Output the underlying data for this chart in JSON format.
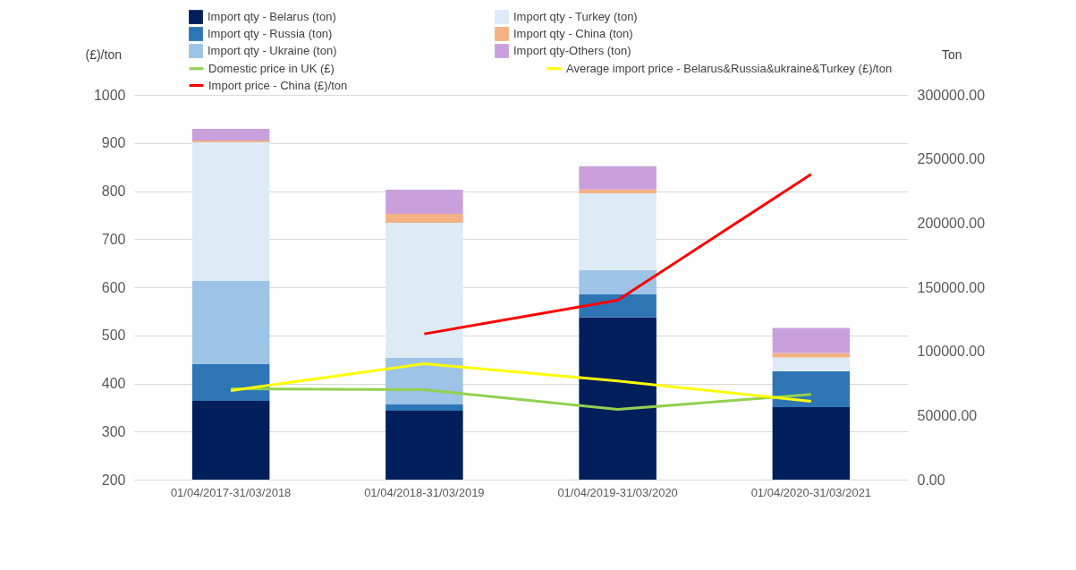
{
  "chart_data": {
    "type": "bar",
    "stacked": true,
    "ylabel": "(£)/ton",
    "y2label": "Ton",
    "grid": "y",
    "legend": "top",
    "categories": [
      "01/04/2017-31/03/2018",
      "01/04/2018-31/03/2019",
      "01/04/2019-31/03/2020",
      "01/04/2020-31/03/2021"
    ],
    "ylim": [
      200,
      1000
    ],
    "yticks": [
      200,
      300,
      400,
      500,
      600,
      700,
      800,
      900,
      1000
    ],
    "y2lim": [
      0,
      300000
    ],
    "y2ticks": [
      {
        "value": 0,
        "label": "0.00"
      },
      {
        "value": 50000,
        "label": "50000.00"
      },
      {
        "value": 100000,
        "label": "100000.00"
      },
      {
        "value": 150000,
        "label": "150000.00"
      },
      {
        "value": 200000,
        "label": "200000.00"
      },
      {
        "value": 250000,
        "label": "250000.00"
      },
      {
        "value": 300000,
        "label": "300000.00"
      }
    ],
    "series": [
      {
        "name": "Import qty - Belarus (ton)",
        "color": "#001f5b",
        "axis": "y2",
        "values": [
          61400,
          53700,
          126500,
          56500
        ]
      },
      {
        "name": "Import qty - Russia (ton)",
        "color": "#2e75b6",
        "axis": "y2",
        "values": [
          28600,
          4900,
          17900,
          28100
        ]
      },
      {
        "name": "Import qty - Ukraine (ton)",
        "color": "#9dc3e6",
        "axis": "y2",
        "values": [
          64900,
          36300,
          18800,
          0
        ]
      },
      {
        "name": "Import qty - Turkey (ton)",
        "color": "#deebf7",
        "axis": "y2",
        "values": [
          108100,
          105300,
          60000,
          10700
        ]
      },
      {
        "name": "Import qty - China (ton)",
        "color": "#f4b183",
        "axis": "y2",
        "values": [
          1400,
          7000,
          3000,
          3500
        ]
      },
      {
        "name": "Import qty-Others (ton)",
        "color": "#c9a0dc",
        "axis": "y2",
        "values": [
          9100,
          18800,
          18100,
          19500
        ]
      },
      {
        "name": "Domestic price in UK (£)",
        "color": "#92d050",
        "type": "line",
        "axis": "y",
        "values": [
          389,
          387,
          346,
          377
        ]
      },
      {
        "name": "Import price - China (£)/ton",
        "color": "#ff0000",
        "type": "line",
        "axis": "y",
        "values": [
          null,
          503,
          573,
          835
        ]
      },
      {
        "name": "Average import price - Belarus&Russia&ukraine&Turkey (£)/ton",
        "color": "#ffff00",
        "type": "line",
        "axis": "y",
        "values": [
          385,
          441,
          405,
          363
        ]
      }
    ]
  }
}
